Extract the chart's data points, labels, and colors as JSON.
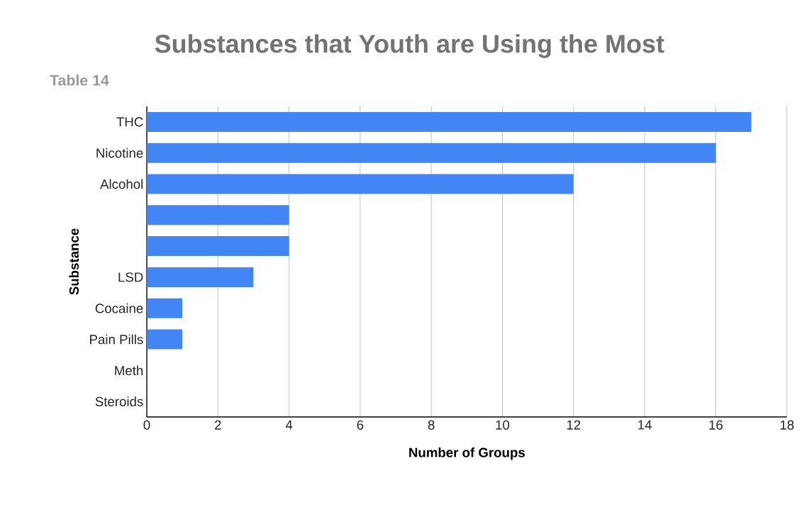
{
  "chart_data": {
    "type": "bar",
    "orientation": "horizontal",
    "title": "Substances that Youth are Using the Most",
    "subtitle": "Table 14",
    "xlabel": "Number of Groups",
    "ylabel": "Substance",
    "categories": [
      "THC",
      "Nicotine",
      "Alcohol",
      null,
      null,
      "LSD",
      "Cocaine",
      "Pain Pills",
      "Meth",
      "Steroids"
    ],
    "values": [
      17,
      16,
      12,
      4,
      4,
      3,
      1,
      1,
      0,
      0
    ],
    "color": "#4285f4",
    "xlim": [
      0,
      18
    ],
    "xticks": [
      0,
      2,
      4,
      6,
      8,
      10,
      12,
      14,
      16,
      18
    ],
    "grid": "x"
  }
}
